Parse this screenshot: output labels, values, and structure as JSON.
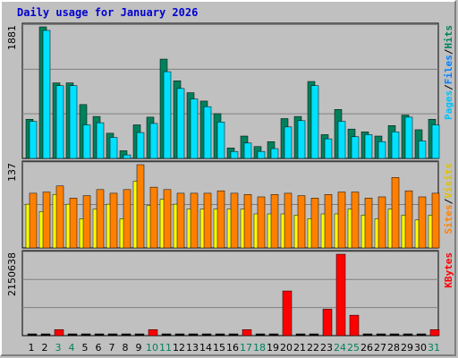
{
  "title": "Daily usage for January 2026",
  "colors": {
    "hits": "#00805c",
    "files": "#00e0ff",
    "pages": "#00c0ff",
    "visits": "#ffff00",
    "sites": "#ff8000",
    "kbytes": "#ff0000",
    "weekend_day": "#00805c",
    "weekday_day": "#000000",
    "sep": "/"
  },
  "chart_data": [
    {
      "type": "bar",
      "name": "hits-files-pages",
      "scale_label": "1881",
      "ymax": 1881,
      "legend": [
        "Pages",
        "Files",
        "Hits"
      ],
      "categories": [
        "1",
        "2",
        "3",
        "4",
        "5",
        "6",
        "7",
        "8",
        "9",
        "10",
        "11",
        "12",
        "13",
        "14",
        "15",
        "16",
        "17",
        "18",
        "19",
        "20",
        "21",
        "22",
        "23",
        "24",
        "25",
        "26",
        "27",
        "28",
        "29",
        "30",
        "31"
      ],
      "series": [
        {
          "name": "Hits",
          "values": [
            560,
            1881,
            1080,
            1080,
            770,
            600,
            360,
            110,
            480,
            590,
            1420,
            1110,
            940,
            820,
            640,
            150,
            320,
            170,
            240,
            570,
            600,
            1100,
            340,
            700,
            420,
            380,
            320,
            470,
            620,
            410,
            560
          ]
        },
        {
          "name": "Files",
          "values": [
            530,
            1830,
            1040,
            1040,
            480,
            510,
            300,
            50,
            370,
            500,
            1240,
            1000,
            850,
            740,
            520,
            100,
            220,
            100,
            140,
            450,
            540,
            1040,
            280,
            530,
            310,
            340,
            240,
            380,
            590,
            250,
            480
          ]
        }
      ]
    },
    {
      "type": "bar",
      "name": "visits-sites",
      "scale_label": "137",
      "ymax": 137,
      "legend": [
        "Sites",
        "Visits"
      ],
      "categories": [
        "1",
        "2",
        "3",
        "4",
        "5",
        "6",
        "7",
        "8",
        "9",
        "10",
        "11",
        "12",
        "13",
        "14",
        "15",
        "16",
        "17",
        "18",
        "19",
        "20",
        "21",
        "22",
        "23",
        "24",
        "25",
        "26",
        "27",
        "28",
        "29",
        "30",
        "31"
      ],
      "series": [
        {
          "name": "Visits",
          "values": [
            72,
            60,
            88,
            72,
            48,
            64,
            72,
            48,
            110,
            70,
            80,
            72,
            64,
            64,
            64,
            64,
            64,
            56,
            56,
            56,
            54,
            48,
            56,
            56,
            64,
            54,
            48,
            64,
            54,
            46,
            54
          ]
        },
        {
          "name": "Sites",
          "values": [
            90,
            92,
            102,
            82,
            86,
            96,
            90,
            96,
            137,
            100,
            96,
            90,
            90,
            90,
            94,
            90,
            88,
            84,
            88,
            90,
            86,
            82,
            88,
            92,
            92,
            82,
            84,
            116,
            94,
            84,
            90
          ]
        }
      ]
    },
    {
      "type": "bar",
      "name": "kbytes",
      "scale_label": "2150638",
      "ymax": 2150638,
      "legend": [
        "KBytes"
      ],
      "categories": [
        "1",
        "2",
        "3",
        "4",
        "5",
        "6",
        "7",
        "8",
        "9",
        "10",
        "11",
        "12",
        "13",
        "14",
        "15",
        "16",
        "17",
        "18",
        "19",
        "20",
        "21",
        "22",
        "23",
        "24",
        "25",
        "26",
        "27",
        "28",
        "29",
        "30",
        "31"
      ],
      "series": [
        {
          "name": "KBytes",
          "values": [
            0,
            0,
            160000,
            0,
            0,
            0,
            0,
            0,
            0,
            160000,
            0,
            0,
            0,
            0,
            0,
            0,
            160000,
            0,
            0,
            1180000,
            0,
            0,
            700000,
            2150638,
            540000,
            0,
            0,
            0,
            0,
            0,
            160000
          ]
        }
      ]
    }
  ],
  "days": [
    "1",
    "2",
    "3",
    "4",
    "5",
    "6",
    "7",
    "8",
    "9",
    "10",
    "11",
    "12",
    "13",
    "14",
    "15",
    "16",
    "17",
    "18",
    "19",
    "20",
    "21",
    "22",
    "23",
    "24",
    "25",
    "26",
    "27",
    "28",
    "29",
    "30",
    "31"
  ],
  "weekend_days": [
    "3",
    "4",
    "10",
    "11",
    "17",
    "18",
    "24",
    "25",
    "31"
  ]
}
